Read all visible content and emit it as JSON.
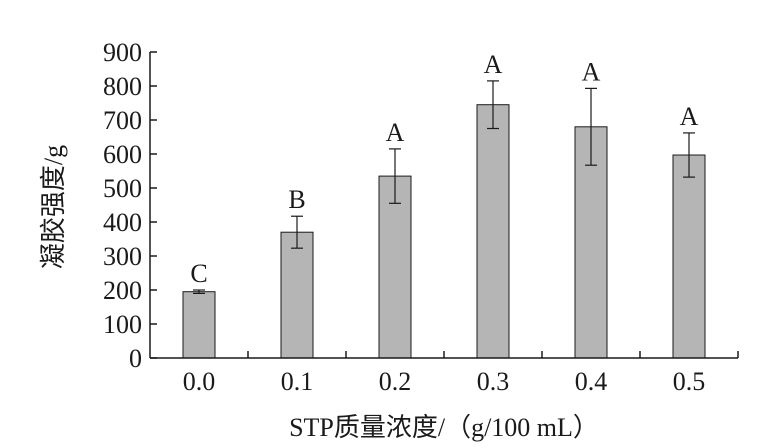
{
  "chart_data": {
    "type": "bar",
    "xlabel": "STP质量浓度/（g/100 mL）",
    "ylabel": "凝胶强度/g",
    "categories": [
      "0.0",
      "0.1",
      "0.2",
      "0.3",
      "0.4",
      "0.5"
    ],
    "values": [
      195,
      370,
      535,
      745,
      680,
      597
    ],
    "errors": [
      5,
      47,
      80,
      70,
      113,
      65
    ],
    "significance": [
      "C",
      "B",
      "A",
      "A",
      "A",
      "A"
    ],
    "ylim": [
      0,
      900
    ],
    "yticks": [
      "0",
      "100",
      "200",
      "300",
      "400",
      "500",
      "600",
      "700",
      "800",
      "900"
    ],
    "grid": false,
    "bar_color": "#b5b5b5"
  }
}
